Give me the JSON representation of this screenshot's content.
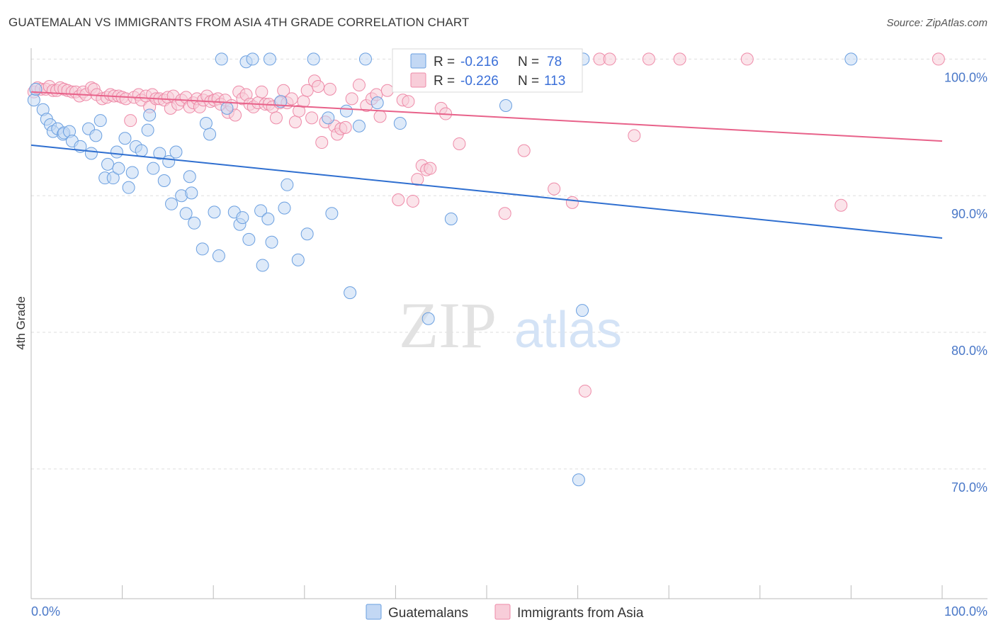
{
  "title": "GUATEMALAN VS IMMIGRANTS FROM ASIA 4TH GRADE CORRELATION CHART",
  "source": "Source: ZipAtlas.com",
  "watermark": {
    "zip": "ZIP",
    "atlas": "atlas"
  },
  "legend_box": {
    "rows": [
      {
        "r_label": "R =",
        "r_value": "-0.216",
        "n_label": "N =",
        "n_value": "78",
        "color": "#9fc2ee"
      },
      {
        "r_label": "R =",
        "r_value": "-0.226",
        "n_label": "N =",
        "n_value": "113",
        "color": "#f4b3c6"
      }
    ]
  },
  "bottom_legend": [
    "Guatemalans",
    "Immigrants from Asia"
  ],
  "chart_data": {
    "type": "scatter",
    "title": "GUATEMALAN VS IMMIGRANTS FROM ASIA 4TH GRADE CORRELATION CHART",
    "xlabel": "",
    "ylabel": "4th Grade",
    "xlim": [
      0,
      100
    ],
    "ylim": [
      60.5,
      100.8
    ],
    "x_tick_labels": [
      "0.0%",
      "100.0%"
    ],
    "y_ticks": [
      70,
      80,
      90,
      100
    ],
    "y_tick_labels": [
      "70.0%",
      "80.0%",
      "90.0%",
      "100.0%"
    ],
    "grid": true,
    "legend_position": "bottom",
    "series": [
      {
        "name": "Guatemalans",
        "color": "#6a9fe0",
        "fill": "#c3d8f4",
        "trend": {
          "x": [
            0,
            100
          ],
          "y": [
            93.7,
            86.9
          ],
          "color": "#2f6fd0"
        },
        "points": [
          [
            0.3,
            97.0
          ],
          [
            0.5,
            97.8
          ],
          [
            1.3,
            96.3
          ],
          [
            1.7,
            95.6
          ],
          [
            2.1,
            95.2
          ],
          [
            2.4,
            94.7
          ],
          [
            2.9,
            94.9
          ],
          [
            3.5,
            94.5
          ],
          [
            3.6,
            94.6
          ],
          [
            4.2,
            94.7
          ],
          [
            4.5,
            94.0
          ],
          [
            5.4,
            93.6
          ],
          [
            6.3,
            94.9
          ],
          [
            6.6,
            93.1
          ],
          [
            7.1,
            94.4
          ],
          [
            7.6,
            95.5
          ],
          [
            8.1,
            91.3
          ],
          [
            8.4,
            92.3
          ],
          [
            9.0,
            91.3
          ],
          [
            9.4,
            93.2
          ],
          [
            9.6,
            92.0
          ],
          [
            10.3,
            94.2
          ],
          [
            10.7,
            90.6
          ],
          [
            11.1,
            91.7
          ],
          [
            11.5,
            93.6
          ],
          [
            12.1,
            93.3
          ],
          [
            12.8,
            94.8
          ],
          [
            13.0,
            95.9
          ],
          [
            13.4,
            92.0
          ],
          [
            14.1,
            93.1
          ],
          [
            14.6,
            91.1
          ],
          [
            15.1,
            92.5
          ],
          [
            15.4,
            89.4
          ],
          [
            15.9,
            93.2
          ],
          [
            16.5,
            90.0
          ],
          [
            17.0,
            88.7
          ],
          [
            17.4,
            91.4
          ],
          [
            17.6,
            90.2
          ],
          [
            17.9,
            88.0
          ],
          [
            18.8,
            86.1
          ],
          [
            19.2,
            95.3
          ],
          [
            19.6,
            94.5
          ],
          [
            20.1,
            88.8
          ],
          [
            20.6,
            85.6
          ],
          [
            20.9,
            100.0
          ],
          [
            21.5,
            96.4
          ],
          [
            22.3,
            88.8
          ],
          [
            22.9,
            87.9
          ],
          [
            23.2,
            88.4
          ],
          [
            23.6,
            99.8
          ],
          [
            23.9,
            86.8
          ],
          [
            24.3,
            100.0
          ],
          [
            25.2,
            88.9
          ],
          [
            25.4,
            84.9
          ],
          [
            26.0,
            88.3
          ],
          [
            26.2,
            100.0
          ],
          [
            26.4,
            86.6
          ],
          [
            27.4,
            96.9
          ],
          [
            27.8,
            89.1
          ],
          [
            28.1,
            90.8
          ],
          [
            29.3,
            85.3
          ],
          [
            30.3,
            87.2
          ],
          [
            31.0,
            100.0
          ],
          [
            32.6,
            95.7
          ],
          [
            33.0,
            88.7
          ],
          [
            34.6,
            96.2
          ],
          [
            35.0,
            82.9
          ],
          [
            36.0,
            95.1
          ],
          [
            36.7,
            100.0
          ],
          [
            38.0,
            96.8
          ],
          [
            40.5,
            95.3
          ],
          [
            43.6,
            81.0
          ],
          [
            46.1,
            88.3
          ],
          [
            52.1,
            96.6
          ],
          [
            60.5,
            81.6
          ],
          [
            60.1,
            69.2
          ],
          [
            60.6,
            100.0
          ],
          [
            90.0,
            100.0
          ]
        ]
      },
      {
        "name": "Immigrants from Asia",
        "color": "#ee8aa8",
        "fill": "#f8cdd9",
        "trend": {
          "x": [
            0,
            100
          ],
          "y": [
            97.6,
            94.0
          ],
          "color": "#e8628a"
        },
        "points": [
          [
            0.3,
            97.6
          ],
          [
            0.7,
            97.9
          ],
          [
            1.1,
            97.8
          ],
          [
            1.6,
            97.8
          ],
          [
            2.0,
            98.0
          ],
          [
            2.4,
            97.7
          ],
          [
            2.8,
            97.7
          ],
          [
            3.2,
            97.9
          ],
          [
            3.6,
            97.8
          ],
          [
            4.0,
            97.7
          ],
          [
            4.5,
            97.6
          ],
          [
            4.9,
            97.6
          ],
          [
            5.3,
            97.3
          ],
          [
            5.7,
            97.6
          ],
          [
            6.0,
            97.4
          ],
          [
            6.6,
            97.9
          ],
          [
            6.9,
            97.8
          ],
          [
            7.2,
            97.4
          ],
          [
            7.8,
            97.1
          ],
          [
            8.3,
            97.2
          ],
          [
            8.7,
            97.4
          ],
          [
            9.1,
            97.3
          ],
          [
            9.6,
            97.3
          ],
          [
            10.0,
            97.2
          ],
          [
            10.4,
            97.1
          ],
          [
            10.9,
            95.5
          ],
          [
            11.3,
            97.2
          ],
          [
            11.8,
            97.4
          ],
          [
            12.1,
            97.0
          ],
          [
            12.6,
            97.3
          ],
          [
            13.0,
            96.5
          ],
          [
            13.3,
            97.4
          ],
          [
            13.7,
            97.1
          ],
          [
            14.1,
            97.1
          ],
          [
            14.6,
            97.0
          ],
          [
            15.0,
            97.2
          ],
          [
            15.3,
            96.4
          ],
          [
            15.6,
            97.3
          ],
          [
            16.1,
            96.7
          ],
          [
            16.5,
            97.0
          ],
          [
            17.0,
            97.2
          ],
          [
            17.4,
            96.5
          ],
          [
            17.8,
            96.8
          ],
          [
            18.2,
            97.1
          ],
          [
            18.5,
            96.5
          ],
          [
            18.9,
            97.0
          ],
          [
            19.3,
            97.3
          ],
          [
            19.7,
            96.9
          ],
          [
            20.1,
            97.0
          ],
          [
            20.5,
            97.1
          ],
          [
            20.8,
            96.7
          ],
          [
            21.3,
            97.0
          ],
          [
            21.6,
            96.1
          ],
          [
            22.0,
            96.6
          ],
          [
            22.4,
            95.9
          ],
          [
            22.8,
            97.6
          ],
          [
            23.2,
            97.1
          ],
          [
            23.6,
            97.4
          ],
          [
            24.0,
            96.7
          ],
          [
            24.4,
            96.5
          ],
          [
            24.9,
            96.8
          ],
          [
            25.3,
            97.6
          ],
          [
            25.7,
            96.7
          ],
          [
            26.1,
            96.7
          ],
          [
            26.5,
            96.5
          ],
          [
            26.9,
            95.7
          ],
          [
            27.3,
            96.8
          ],
          [
            27.7,
            97.7
          ],
          [
            28.1,
            96.8
          ],
          [
            28.6,
            97.1
          ],
          [
            29.0,
            95.4
          ],
          [
            29.4,
            96.2
          ],
          [
            29.9,
            96.9
          ],
          [
            30.3,
            97.7
          ],
          [
            30.8,
            95.7
          ],
          [
            31.1,
            98.4
          ],
          [
            31.5,
            98.0
          ],
          [
            31.9,
            93.9
          ],
          [
            32.3,
            95.4
          ],
          [
            32.8,
            97.8
          ],
          [
            33.3,
            95.1
          ],
          [
            33.6,
            94.5
          ],
          [
            34.0,
            94.9
          ],
          [
            34.5,
            95.0
          ],
          [
            35.2,
            97.1
          ],
          [
            36.0,
            98.1
          ],
          [
            36.8,
            96.6
          ],
          [
            37.4,
            97.1
          ],
          [
            37.9,
            97.4
          ],
          [
            38.3,
            95.8
          ],
          [
            39.1,
            97.7
          ],
          [
            40.3,
            89.7
          ],
          [
            40.8,
            97.0
          ],
          [
            41.4,
            96.9
          ],
          [
            41.9,
            89.6
          ],
          [
            42.4,
            91.2
          ],
          [
            42.9,
            92.2
          ],
          [
            43.4,
            91.9
          ],
          [
            43.8,
            92.0
          ],
          [
            45.0,
            96.4
          ],
          [
            45.5,
            96.0
          ],
          [
            47.0,
            93.8
          ],
          [
            52.0,
            88.7
          ],
          [
            53.2,
            100.0
          ],
          [
            54.1,
            93.3
          ],
          [
            57.4,
            90.5
          ],
          [
            59.4,
            89.5
          ],
          [
            60.8,
            75.7
          ],
          [
            62.4,
            100.0
          ],
          [
            63.5,
            100.0
          ],
          [
            66.2,
            94.4
          ],
          [
            67.8,
            100.0
          ],
          [
            71.2,
            100.0
          ],
          [
            78.6,
            100.0
          ],
          [
            88.9,
            89.3
          ],
          [
            99.6,
            100.0
          ]
        ]
      }
    ]
  }
}
